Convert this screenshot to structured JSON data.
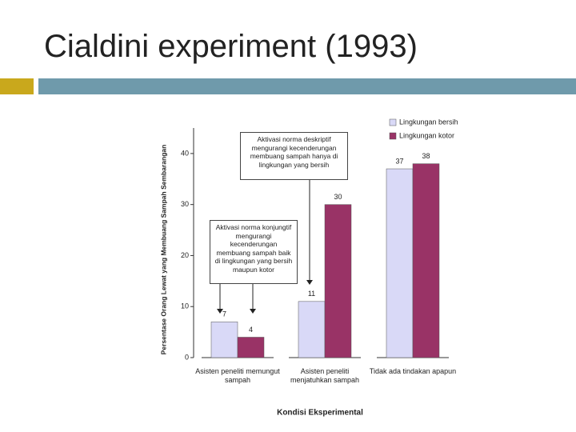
{
  "slide_title": "Cialdini experiment (1993)",
  "chart_data": {
    "type": "bar",
    "categories": [
      "Asisten peneliti memungut sampah",
      "Asisten peneliti menjatuhkan sampah",
      "Tidak ada tindakan apapun"
    ],
    "series": [
      {
        "name": "Lingkungan bersih",
        "color": "#d9d9f7",
        "values": [
          7,
          11,
          37
        ]
      },
      {
        "name": "Lingkungan kotor",
        "color": "#993366",
        "values": [
          4,
          30,
          38
        ]
      }
    ],
    "ylim": [
      0,
      45
    ],
    "yticks": [
      0,
      10,
      20,
      30,
      40
    ],
    "grid": false,
    "y_label": "Persentase Orang Lewat yang Membuang Sampah Sembarangan",
    "x_label": "Kondisi Eksperimental",
    "legend": "upper right",
    "annotations": [
      "Aktivasi norma deskriptif mengurangi kecenderungan membuang sampah hanya di lingkungan yang bersih",
      "Aktivasi norma konjungtif mengurangi kecenderungan membuang sampah baik di lingkungan yang bersih maupun kotor"
    ]
  }
}
